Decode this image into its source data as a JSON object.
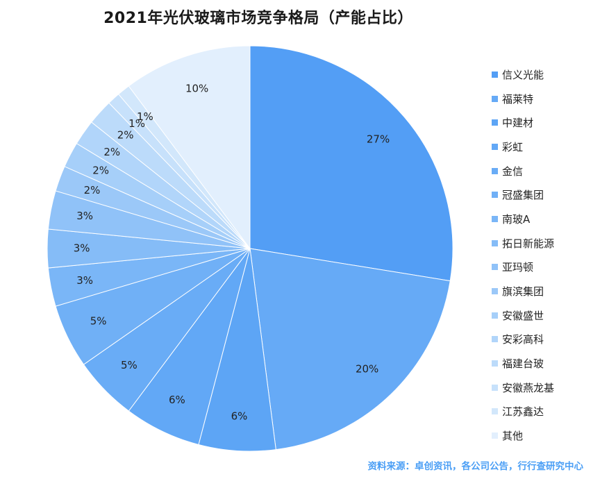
{
  "chart_data": {
    "type": "pie",
    "title": "2021年光伏玻璃市场竞争格局（产能占比）",
    "start_angle": "12 o'clock, clockwise",
    "legend_position": "right",
    "slices": [
      {
        "label": "信义光能",
        "value": 27,
        "display": "27%",
        "color": "#539ef5"
      },
      {
        "label": "福莱特",
        "value": 20,
        "display": "20%",
        "color": "#66aaf6"
      },
      {
        "label": "中建材",
        "value": 6,
        "display": "6%",
        "color": "#5da5f5"
      },
      {
        "label": "彩虹",
        "value": 6,
        "display": "6%",
        "color": "#62a8f6"
      },
      {
        "label": "金信",
        "value": 5,
        "display": "5%",
        "color": "#69acf6"
      },
      {
        "label": "冠盛集团",
        "value": 5,
        "display": "5%",
        "color": "#70b0f6"
      },
      {
        "label": "南玻A",
        "value": 3,
        "display": "3%",
        "color": "#7ab6f7"
      },
      {
        "label": "拓日新能源",
        "value": 3,
        "display": "3%",
        "color": "#85bcf7"
      },
      {
        "label": "亚玛顿",
        "value": 3,
        "display": "3%",
        "color": "#90c2f8"
      },
      {
        "label": "旗滨集团",
        "value": 2,
        "display": "2%",
        "color": "#9bc8f8"
      },
      {
        "label": "安徽盛世",
        "value": 2,
        "display": "2%",
        "color": "#a6cff9"
      },
      {
        "label": "安彩高科",
        "value": 2,
        "display": "2%",
        "color": "#b1d5fa"
      },
      {
        "label": "福建台玻",
        "value": 2,
        "display": "2%",
        "color": "#bcdbfa"
      },
      {
        "label": "安徽燕龙基",
        "value": 1,
        "display": "1%",
        "color": "#c7e1fb"
      },
      {
        "label": "江苏鑫达",
        "value": 1,
        "display": "1%",
        "color": "#d2e7fb"
      },
      {
        "label": "其他",
        "value": 10,
        "display": "10%",
        "color": "#e2effd"
      }
    ]
  },
  "footer": {
    "source": "资料来源：卓创资讯，各公司公告，行行查研究中心"
  }
}
